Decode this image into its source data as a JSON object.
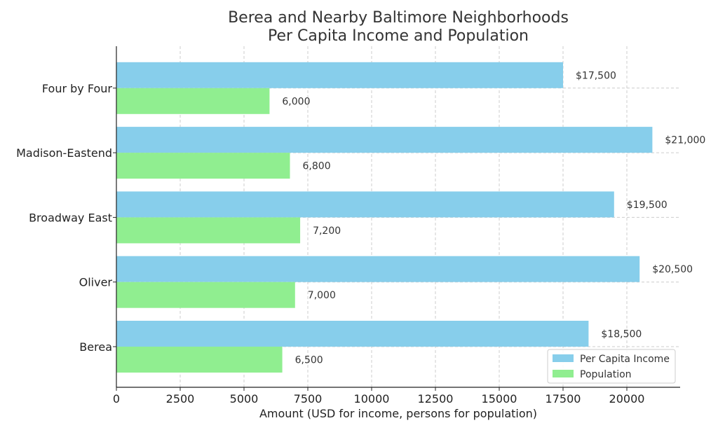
{
  "chart_data": {
    "type": "bar",
    "orientation": "horizontal",
    "title_lines": [
      "Berea and Nearby Baltimore Neighborhoods",
      "Per Capita Income and Population"
    ],
    "xlabel": "Amount (USD for income, persons for population)",
    "ylabel": "",
    "categories": [
      "Berea",
      "Oliver",
      "Broadway East",
      "Madison-Eastend",
      "Four by Four"
    ],
    "series": [
      {
        "name": "Per Capita Income",
        "color": "#87ceeb",
        "values": [
          18500,
          20500,
          19500,
          21000,
          17500
        ],
        "labels": [
          "$18,500",
          "$20,500",
          "$19,500",
          "$21,000",
          "$17,500"
        ]
      },
      {
        "name": "Population",
        "color": "#90ee90",
        "values": [
          6500,
          7000,
          7200,
          6800,
          6000
        ],
        "labels": [
          "6,500",
          "7,000",
          "7,200",
          "6,800",
          "6,000"
        ]
      }
    ],
    "xlim": [
      0,
      22000
    ],
    "xticks": [
      0,
      2500,
      5000,
      7500,
      10000,
      12500,
      15000,
      17500,
      20000
    ],
    "grid": true,
    "legend_position": "bottom-right"
  }
}
